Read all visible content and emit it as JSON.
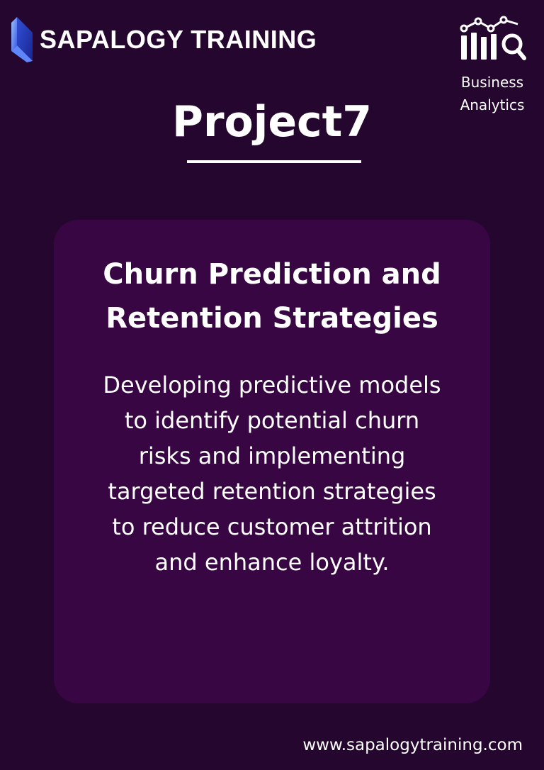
{
  "brand": {
    "logo_icon": "sapalogy-logo-icon",
    "name": "SAPALOGY TRAINING"
  },
  "category": {
    "icon": "bar-chart-magnifier-icon",
    "label_lines": [
      "Business",
      "Analytics"
    ]
  },
  "project": {
    "title": "Project7"
  },
  "card": {
    "heading_lines": [
      "Churn Prediction and",
      "Retention Strategies"
    ],
    "description_lines": [
      "Developing predictive models",
      "to identify potential churn",
      "risks and implementing",
      "targeted retention strategies",
      "to reduce customer attrition",
      "and enhance loyalty."
    ]
  },
  "footer": {
    "website": "www.sapalogytraining.com"
  },
  "colors": {
    "background": "#24062f",
    "card": "#380642",
    "text": "#ffffff",
    "logo_light": "#7aa8ff",
    "logo_dark": "#2a3fc9"
  }
}
